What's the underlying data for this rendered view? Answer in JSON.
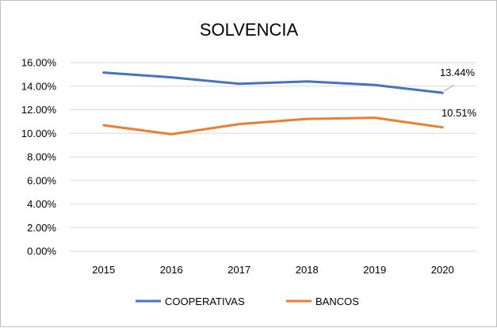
{
  "chart_data": {
    "type": "line",
    "title": "SOLVENCIA",
    "xlabel": "",
    "ylabel": "",
    "categories": [
      "2015",
      "2016",
      "2017",
      "2018",
      "2019",
      "2020"
    ],
    "ylim": [
      0,
      16
    ],
    "yticks": [
      "0.00%",
      "2.00%",
      "4.00%",
      "6.00%",
      "8.00%",
      "10.00%",
      "12.00%",
      "14.00%",
      "16.00%"
    ],
    "grid": true,
    "legend_position": "bottom",
    "series": [
      {
        "name": "COOPERATIVAS",
        "color": "#4472c4",
        "values": [
          15.15,
          14.75,
          14.2,
          14.4,
          14.1,
          13.44
        ],
        "end_label": "13.44%"
      },
      {
        "name": "BANCOS",
        "color": "#ed7d31",
        "values": [
          10.68,
          9.92,
          10.78,
          11.22,
          11.32,
          10.51
        ],
        "end_label": "10.51%"
      }
    ]
  }
}
